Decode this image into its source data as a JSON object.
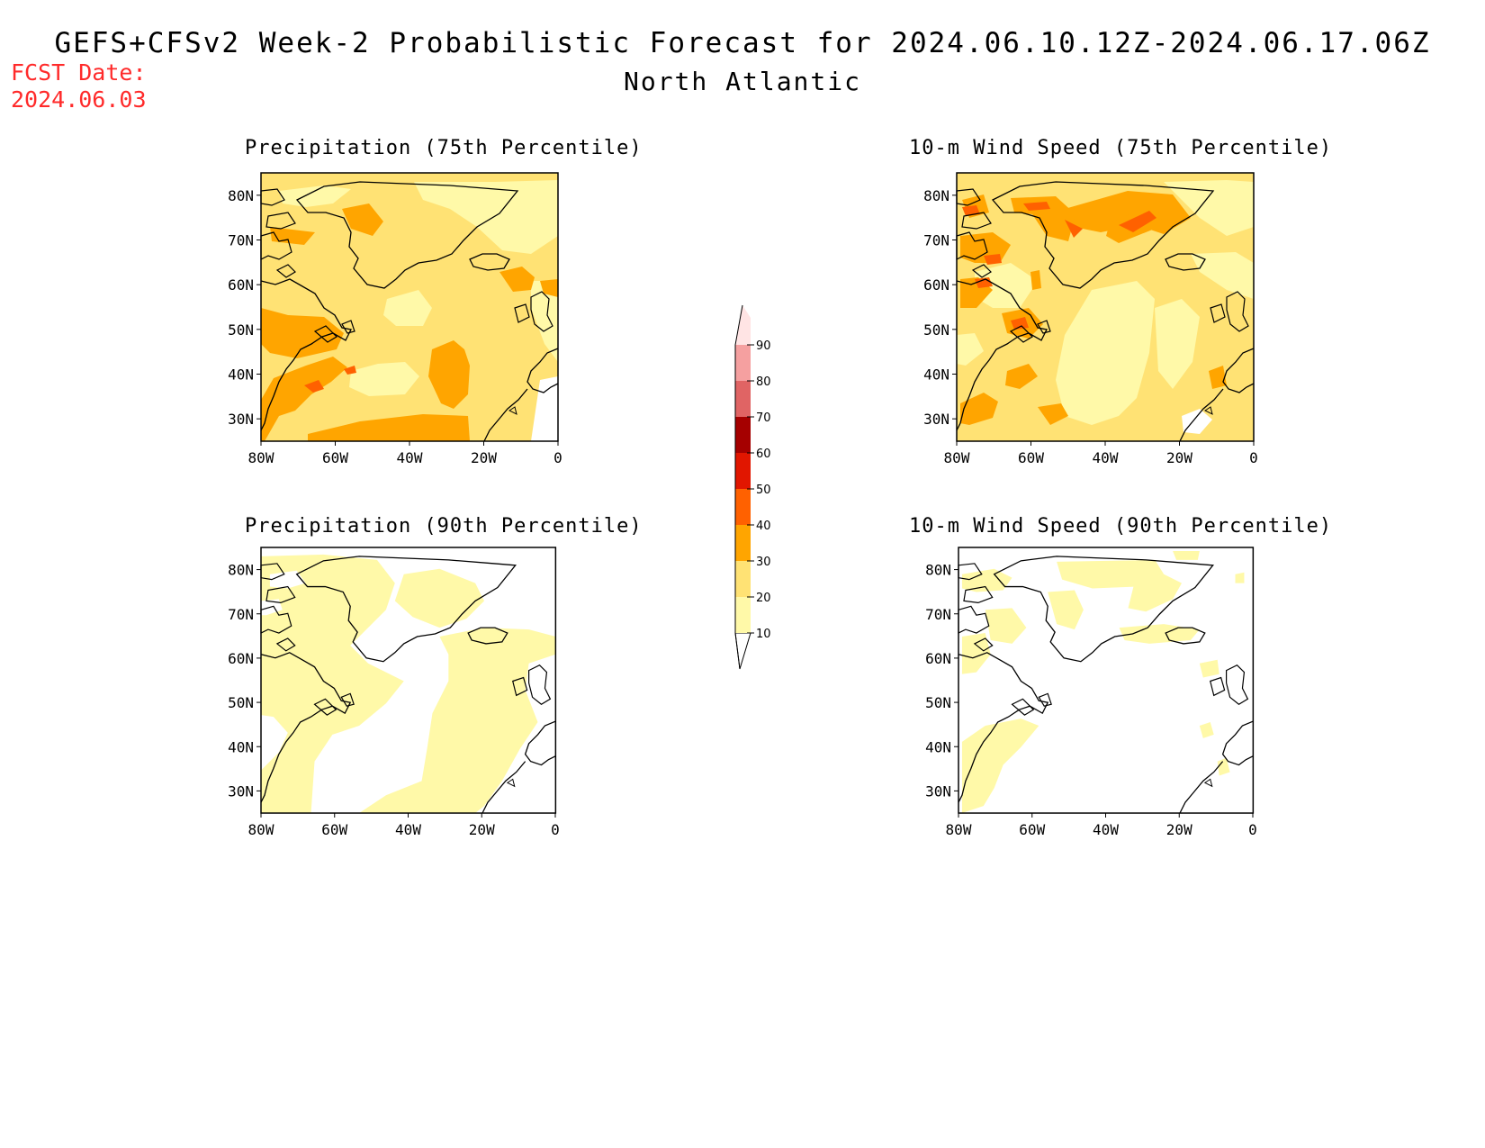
{
  "title": "GEFS+CFSv2 Week-2 Probabilistic Forecast for 2024.06.10.12Z-2024.06.17.06Z",
  "subtitle": "North Atlantic",
  "fcst_label": "FCST Date:",
  "fcst_date": "2024.06.03",
  "colors": {
    "c10": "#fff9a8",
    "c20": "#ffe274",
    "c30": "#ffa500",
    "c40": "#ff6100",
    "c50": "#e11600",
    "c60": "#a50000",
    "c70": "#e06464",
    "c80": "#f5a0a0",
    "c90": "#ffe4e4",
    "coast": "#000000",
    "fcst_text": "#ff2a2a"
  },
  "colorbar": {
    "levels": [
      "10",
      "20",
      "30",
      "40",
      "50",
      "60",
      "70",
      "80",
      "90"
    ]
  },
  "panels": [
    {
      "title": "Precipitation (75th Percentile)",
      "variable": "precipitation",
      "percentile": "75th",
      "lat_labels": [
        "80N",
        "70N",
        "60N",
        "50N",
        "40N",
        "30N"
      ],
      "lon_labels": [
        "80W",
        "60W",
        "40W",
        "20W",
        "0"
      ]
    },
    {
      "title": "10-m Wind Speed (75th Percentile)",
      "variable": "wind",
      "percentile": "75th",
      "lat_labels": [
        "80N",
        "70N",
        "60N",
        "50N",
        "40N",
        "30N"
      ],
      "lon_labels": [
        "80W",
        "60W",
        "40W",
        "20W",
        "0"
      ]
    },
    {
      "title": "Precipitation (90th Percentile)",
      "variable": "precipitation",
      "percentile": "90th",
      "lat_labels": [
        "80N",
        "70N",
        "60N",
        "50N",
        "40N",
        "30N"
      ],
      "lon_labels": [
        "80W",
        "60W",
        "40W",
        "20W",
        "0"
      ]
    },
    {
      "title": "10-m Wind Speed (90th Percentile)",
      "variable": "wind",
      "percentile": "90th",
      "lat_labels": [
        "80N",
        "70N",
        "60N",
        "50N",
        "40N",
        "30N"
      ],
      "lon_labels": [
        "80W",
        "60W",
        "40W",
        "20W",
        "0"
      ]
    }
  ]
}
